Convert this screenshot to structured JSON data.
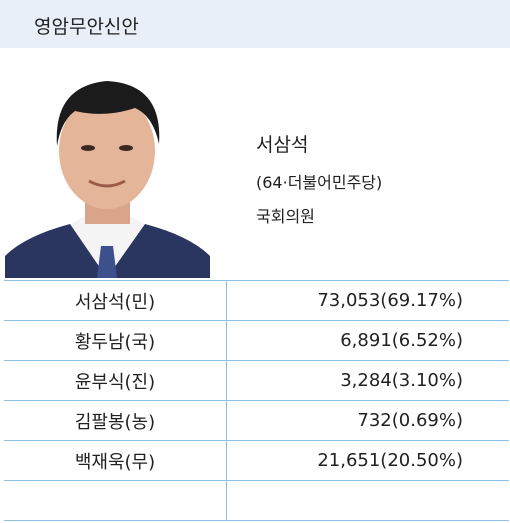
{
  "header": {
    "title": "영암무안신안"
  },
  "candidate": {
    "name": "서삼석",
    "detail": "(64·더불어민주당)",
    "position": "국회의원"
  },
  "table": {
    "rows": [
      [
        "서삼석(민)",
        "73,053(69.17%)"
      ],
      [
        "황두남(국)",
        "6,891(6.52%)"
      ],
      [
        "윤부식(진)",
        "3,284(3.10%)"
      ],
      [
        "김팔봉(농)",
        "732(0.69%)"
      ],
      [
        "백재욱(무)",
        "21,651(20.50%)"
      ]
    ]
  }
}
